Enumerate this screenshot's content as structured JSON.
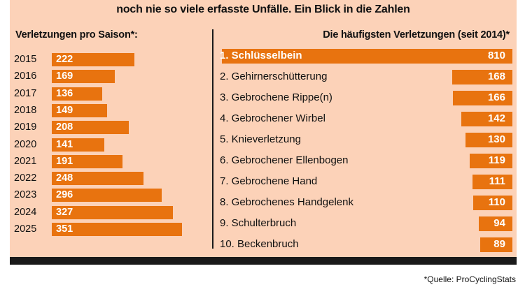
{
  "headline": "noch nie so viele erfasste Unfälle. Ein Blick in die Zahlen",
  "source": "*Quelle: ProCyclingStats",
  "colors": {
    "panel": "#fcd2b8",
    "bar": "#e8730f",
    "dark": "#1a1a1a"
  },
  "chart_data": [
    {
      "type": "bar",
      "orientation": "horizontal",
      "title": "Verletzungen pro Saison*:",
      "categories": [
        "2015",
        "2016",
        "2017",
        "2018",
        "2019",
        "2020",
        "2021",
        "2022",
        "2023",
        "2024",
        "2025"
      ],
      "values": [
        222,
        169,
        136,
        149,
        208,
        141,
        191,
        248,
        296,
        327,
        351
      ],
      "value_labels": [
        "222",
        "169",
        "136",
        "149",
        "208",
        "141",
        "191",
        "248",
        "296",
        "327",
        "351"
      ]
    },
    {
      "type": "bar",
      "orientation": "horizontal",
      "title": "Die häufigsten Verletzungen (seit 2014)*",
      "categories": [
        "1. Schlüsselbein",
        "2. Gehirnerschütterung",
        "3. Gebrochene Rippe(n)",
        "4. Gebrochener Wirbel",
        "5. Knieverletzung",
        "6. Gebrochener Ellenbogen",
        "7. Gebrochene Hand",
        "8. Gebrochenes Handgelenk",
        "9. Schulterbruch",
        "10. Beckenbruch"
      ],
      "values": [
        810,
        168,
        166,
        142,
        130,
        119,
        111,
        110,
        94,
        89
      ],
      "value_labels": [
        "810",
        "168",
        "166",
        "142",
        "130",
        "119",
        "111",
        "110",
        "94",
        "89"
      ]
    }
  ]
}
